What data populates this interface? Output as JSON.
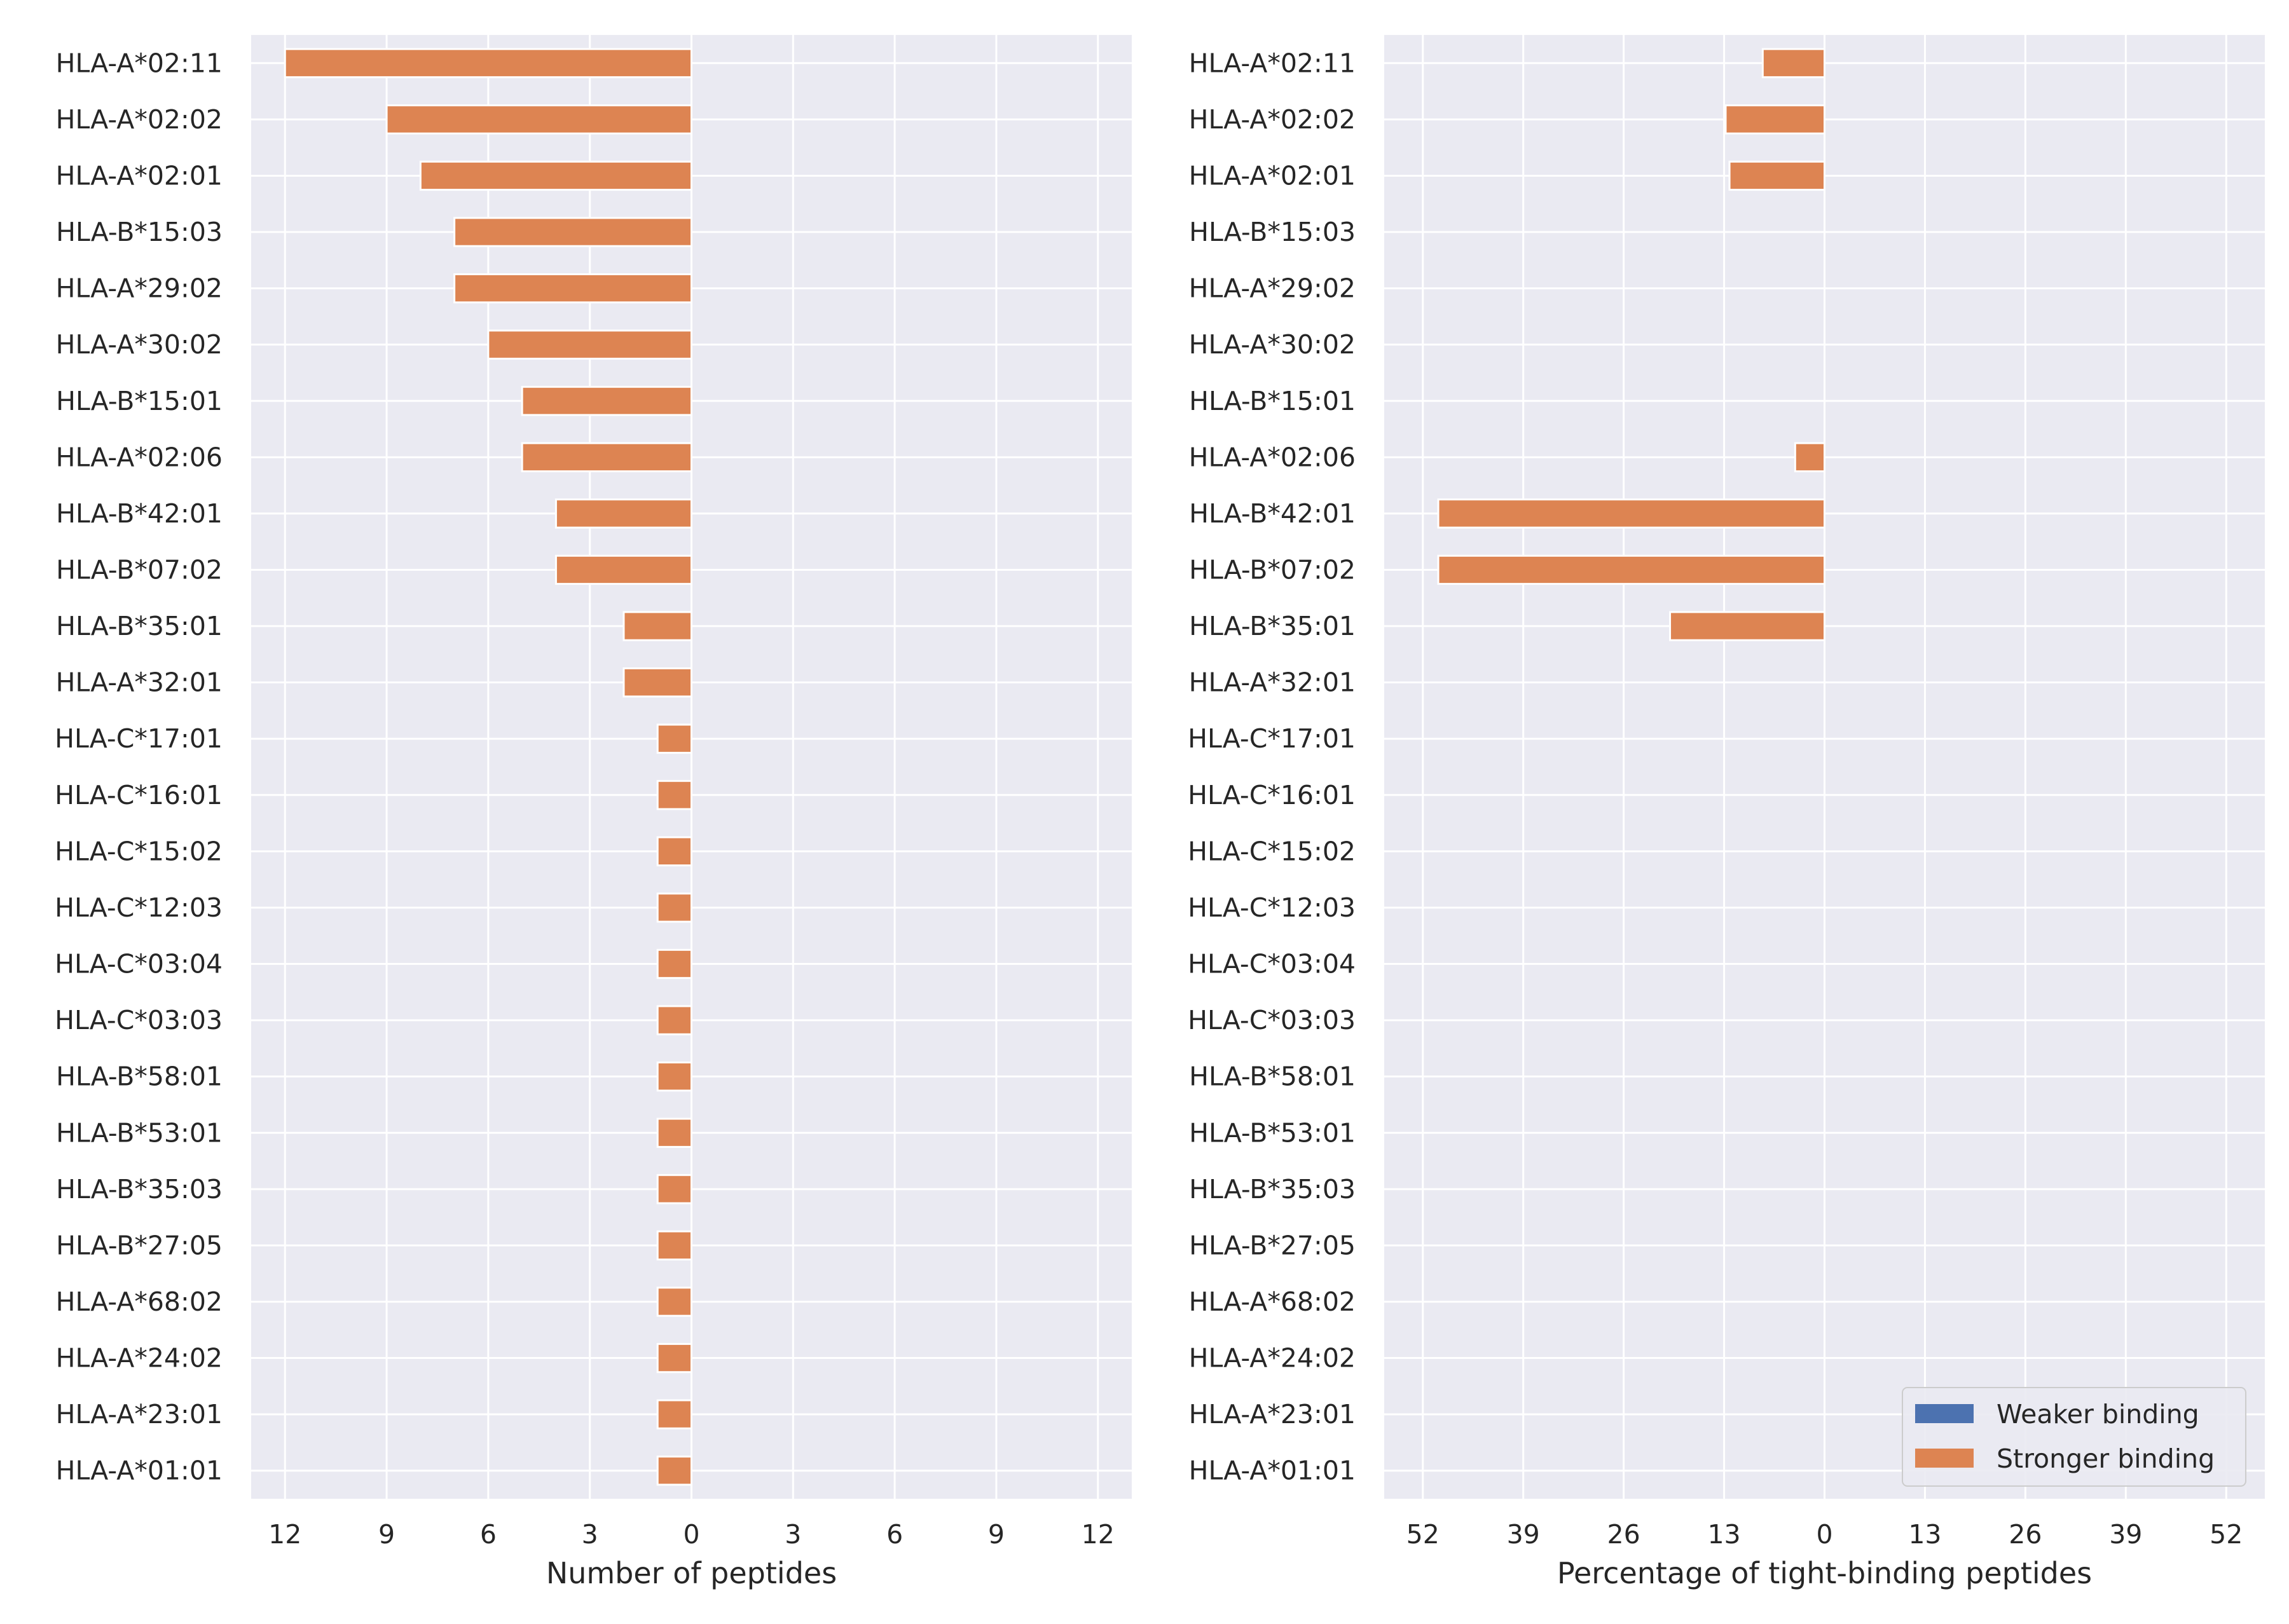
{
  "chart_data": [
    {
      "type": "bar",
      "orientation": "horizontal-diverging",
      "title": "",
      "xlabel": "Number of peptides",
      "ylabel": "",
      "xlim": [
        -13,
        13
      ],
      "x_ticks": [
        -12,
        -9,
        -6,
        -3,
        0,
        3,
        6,
        9,
        12
      ],
      "x_tick_labels": [
        "12",
        "9",
        "6",
        "3",
        "0",
        "3",
        "6",
        "9",
        "12"
      ],
      "grid": true,
      "categories": [
        "HLA-A*02:11",
        "HLA-A*02:02",
        "HLA-A*02:01",
        "HLA-B*15:03",
        "HLA-A*29:02",
        "HLA-A*30:02",
        "HLA-B*15:01",
        "HLA-A*02:06",
        "HLA-B*42:01",
        "HLA-B*07:02",
        "HLA-B*35:01",
        "HLA-A*32:01",
        "HLA-C*17:01",
        "HLA-C*16:01",
        "HLA-C*15:02",
        "HLA-C*12:03",
        "HLA-C*03:04",
        "HLA-C*03:03",
        "HLA-B*58:01",
        "HLA-B*53:01",
        "HLA-B*35:03",
        "HLA-B*27:05",
        "HLA-A*68:02",
        "HLA-A*24:02",
        "HLA-A*23:01",
        "HLA-A*01:01"
      ],
      "series": [
        {
          "name": "Weaker binding",
          "color": "#4c72b0",
          "values": [
            0,
            0,
            0,
            0,
            0,
            0,
            0,
            0,
            0,
            0,
            0,
            0,
            0,
            0,
            0,
            0,
            0,
            0,
            0,
            0,
            0,
            0,
            0,
            0,
            0,
            0
          ]
        },
        {
          "name": "Stronger binding",
          "color": "#dd8452",
          "values": [
            12,
            9,
            8,
            7,
            7,
            6,
            5,
            5,
            4,
            4,
            2,
            2,
            1,
            1,
            1,
            1,
            1,
            1,
            1,
            1,
            1,
            1,
            1,
            1,
            1,
            1
          ]
        }
      ]
    },
    {
      "type": "bar",
      "orientation": "horizontal-diverging",
      "title": "",
      "xlabel": "Percentage of tight-binding peptides",
      "ylabel": "",
      "xlim": [
        -57,
        57
      ],
      "x_ticks": [
        -52,
        -39,
        -26,
        -13,
        0,
        13,
        26,
        39,
        52
      ],
      "x_tick_labels": [
        "52",
        "39",
        "26",
        "13",
        "0",
        "13",
        "26",
        "39",
        "52"
      ],
      "grid": true,
      "legend_position": "lower-right",
      "categories": [
        "HLA-A*02:11",
        "HLA-A*02:02",
        "HLA-A*02:01",
        "HLA-B*15:03",
        "HLA-A*29:02",
        "HLA-A*30:02",
        "HLA-B*15:01",
        "HLA-A*02:06",
        "HLA-B*42:01",
        "HLA-B*07:02",
        "HLA-B*35:01",
        "HLA-A*32:01",
        "HLA-C*17:01",
        "HLA-C*16:01",
        "HLA-C*15:02",
        "HLA-C*12:03",
        "HLA-C*03:04",
        "HLA-C*03:03",
        "HLA-B*58:01",
        "HLA-B*53:01",
        "HLA-B*35:03",
        "HLA-B*27:05",
        "HLA-A*68:02",
        "HLA-A*24:02",
        "HLA-A*23:01",
        "HLA-A*01:01"
      ],
      "series": [
        {
          "name": "Weaker binding",
          "color": "#4c72b0",
          "values": [
            0,
            0,
            0,
            0,
            0,
            0,
            0,
            0,
            0,
            0,
            0,
            0,
            0,
            0,
            0,
            0,
            0,
            0,
            0,
            0,
            0,
            0,
            0,
            0,
            0,
            0
          ]
        },
        {
          "name": "Stronger binding",
          "color": "#dd8452",
          "values": [
            8,
            12.8,
            12.3,
            0,
            0,
            0,
            0,
            3.8,
            50,
            50,
            20,
            0,
            0,
            0,
            0,
            0,
            0,
            0,
            0,
            0,
            0,
            0,
            0,
            0,
            0,
            0
          ]
        }
      ]
    }
  ],
  "legend": {
    "items": [
      {
        "label": "Weaker binding",
        "color": "#4c72b0"
      },
      {
        "label": "Stronger binding",
        "color": "#dd8452"
      }
    ]
  },
  "colors": {
    "axes_background": "#eaeaf2",
    "grid": "#ffffff",
    "text": "#262626"
  }
}
